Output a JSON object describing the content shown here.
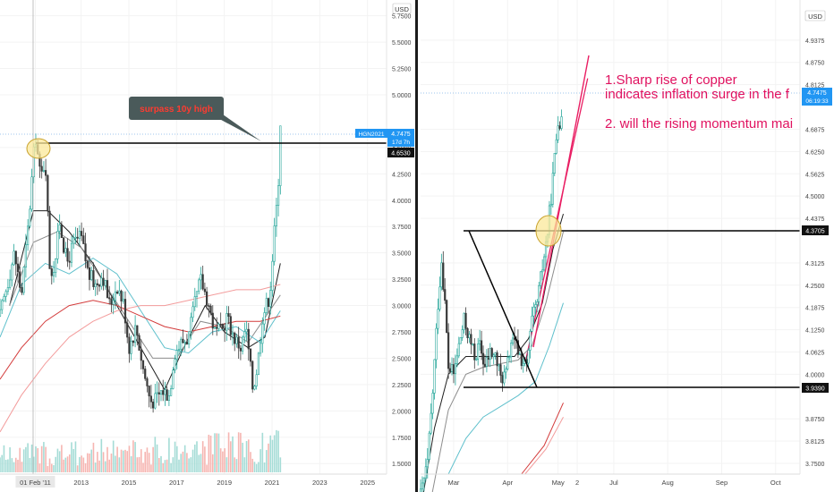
{
  "colors": {
    "up": "#26a69a",
    "down": "#3b3b3b",
    "vol_up": "#a5dcd6",
    "vol_down": "#f6b5b1",
    "ma_black": "#1f1f1f",
    "ma_gray": "#8d8d8d",
    "ma_teal": "#5fc0cc",
    "ma_red_dark": "#d33b3b",
    "ma_red_light": "#f39c9c",
    "trend": "#e91e63",
    "annot_text": "#e0115f",
    "price_badge": "#2196f3",
    "callout_bg": "#4a5a5a",
    "callout_text": "#ff3b30",
    "ellipse_fill": "#fbe89a",
    "ellipse_stroke": "#c8a22d"
  },
  "chart_data": [
    {
      "type": "candlestick",
      "symbol": "HGN2021",
      "timeframe": "monthly",
      "currency": "USD",
      "ylim": [
        1.4,
        5.9
      ],
      "y_ticks": [
        "5.7500",
        "5.5000",
        "5.2500",
        "5.0000",
        "4.5000",
        "4.2500",
        "4.0000",
        "3.7500",
        "3.5000",
        "3.2500",
        "3.0000",
        "2.7500",
        "2.5000",
        "2.2500",
        "2.0000",
        "1.7500",
        "1.5000"
      ],
      "x_labels": [
        "01 Feb '11",
        "2013",
        "2015",
        "2017",
        "2019",
        "2021",
        "2023",
        "2025"
      ],
      "x_label_years": [
        2011.08,
        2013,
        2015,
        2017,
        2019,
        2021,
        2023,
        2025
      ],
      "xlim": [
        2009.6,
        2025.8
      ],
      "last_price": "4.7475",
      "countdown": "17d 7h",
      "horizontal_level": "4.6530",
      "callout": "surpass 10y high",
      "price_path": [
        [
          2009.6,
          2.9
        ],
        [
          2009.9,
          3.2
        ],
        [
          2010.2,
          3.5
        ],
        [
          2010.5,
          3.1
        ],
        [
          2010.8,
          3.8
        ],
        [
          2011.0,
          4.4
        ],
        [
          2011.1,
          4.6
        ],
        [
          2011.3,
          4.2
        ],
        [
          2011.5,
          4.4
        ],
        [
          2011.7,
          3.3
        ],
        [
          2011.9,
          3.4
        ],
        [
          2012.1,
          3.8
        ],
        [
          2012.4,
          3.4
        ],
        [
          2012.7,
          3.6
        ],
        [
          2013.0,
          3.65
        ],
        [
          2013.3,
          3.3
        ],
        [
          2013.6,
          3.2
        ],
        [
          2013.9,
          3.3
        ],
        [
          2014.2,
          3.0
        ],
        [
          2014.5,
          3.2
        ],
        [
          2014.8,
          3.0
        ],
        [
          2015.0,
          2.6
        ],
        [
          2015.3,
          2.8
        ],
        [
          2015.6,
          2.4
        ],
        [
          2015.9,
          2.1
        ],
        [
          2016.1,
          2.1
        ],
        [
          2016.4,
          2.2
        ],
        [
          2016.7,
          2.15
        ],
        [
          2016.9,
          2.55
        ],
        [
          2017.2,
          2.65
        ],
        [
          2017.5,
          2.7
        ],
        [
          2017.8,
          3.05
        ],
        [
          2018.0,
          3.25
        ],
        [
          2018.3,
          3.05
        ],
        [
          2018.6,
          2.75
        ],
        [
          2018.9,
          2.75
        ],
        [
          2019.1,
          2.9
        ],
        [
          2019.4,
          2.7
        ],
        [
          2019.7,
          2.6
        ],
        [
          2019.9,
          2.8
        ],
        [
          2020.2,
          2.2
        ],
        [
          2020.4,
          2.45
        ],
        [
          2020.6,
          2.9
        ],
        [
          2020.9,
          3.1
        ],
        [
          2021.1,
          3.7
        ],
        [
          2021.25,
          4.1
        ],
        [
          2021.35,
          4.75
        ]
      ],
      "volume_range": [
        0.05,
        0.4
      ],
      "moving_averages": [
        {
          "color_key": "ma_black",
          "points": [
            [
              2010.0,
              3.0
            ],
            [
              2011.0,
              3.9
            ],
            [
              2011.6,
              3.9
            ],
            [
              2012.5,
              3.7
            ],
            [
              2013.5,
              3.4
            ],
            [
              2014.5,
              3.0
            ],
            [
              2015.5,
              2.6
            ],
            [
              2016.5,
              2.2
            ],
            [
              2017.3,
              2.6
            ],
            [
              2018.2,
              3.0
            ],
            [
              2019.0,
              2.75
            ],
            [
              2020.0,
              2.6
            ],
            [
              2020.7,
              2.7
            ],
            [
              2021.35,
              3.4
            ]
          ]
        },
        {
          "color_key": "ma_gray",
          "points": [
            [
              2010.0,
              3.0
            ],
            [
              2011.0,
              3.6
            ],
            [
              2012.0,
              3.7
            ],
            [
              2013.0,
              3.55
            ],
            [
              2014.0,
              3.2
            ],
            [
              2015.0,
              2.85
            ],
            [
              2016.0,
              2.5
            ],
            [
              2017.0,
              2.5
            ],
            [
              2018.0,
              2.85
            ],
            [
              2019.0,
              2.8
            ],
            [
              2020.0,
              2.65
            ],
            [
              2021.35,
              3.1
            ]
          ]
        },
        {
          "color_key": "ma_teal",
          "points": [
            [
              2009.6,
              2.7
            ],
            [
              2010.5,
              3.2
            ],
            [
              2011.5,
              3.4
            ],
            [
              2012.5,
              3.3
            ],
            [
              2013.5,
              3.45
            ],
            [
              2014.5,
              3.3
            ],
            [
              2015.5,
              2.95
            ],
            [
              2016.5,
              2.6
            ],
            [
              2017.5,
              2.55
            ],
            [
              2018.5,
              2.75
            ],
            [
              2019.5,
              2.8
            ],
            [
              2020.5,
              2.65
            ],
            [
              2021.35,
              2.95
            ]
          ]
        },
        {
          "color_key": "ma_red_dark",
          "points": [
            [
              2009.6,
              2.3
            ],
            [
              2010.5,
              2.6
            ],
            [
              2011.5,
              2.85
            ],
            [
              2012.5,
              3.0
            ],
            [
              2013.5,
              3.05
            ],
            [
              2014.5,
              3.0
            ],
            [
              2015.5,
              2.9
            ],
            [
              2016.5,
              2.8
            ],
            [
              2017.5,
              2.75
            ],
            [
              2018.5,
              2.8
            ],
            [
              2019.5,
              2.85
            ],
            [
              2020.5,
              2.85
            ],
            [
              2021.35,
              2.9
            ]
          ]
        },
        {
          "color_key": "ma_red_light",
          "points": [
            [
              2009.6,
              1.8
            ],
            [
              2010.5,
              2.15
            ],
            [
              2011.5,
              2.45
            ],
            [
              2012.5,
              2.7
            ],
            [
              2013.5,
              2.85
            ],
            [
              2014.5,
              2.95
            ],
            [
              2015.5,
              3.0
            ],
            [
              2016.5,
              3.0
            ],
            [
              2017.5,
              3.05
            ],
            [
              2018.5,
              3.1
            ],
            [
              2019.5,
              3.15
            ],
            [
              2020.5,
              3.15
            ],
            [
              2021.35,
              3.2
            ]
          ]
        }
      ]
    },
    {
      "type": "candlestick",
      "timeframe": "daily",
      "currency": "USD",
      "ylim": [
        3.72,
        5.05
      ],
      "y_ticks": [
        "4.9375",
        "4.8750",
        "4.8125",
        "4.6875",
        "4.6250",
        "4.5625",
        "4.5000",
        "4.4375",
        "4.3125",
        "4.2500",
        "4.1875",
        "4.1250",
        "4.0625",
        "4.0000",
        "3.8750",
        "3.8125",
        "3.7500"
      ],
      "x_labels": [
        "Mar",
        "Apr",
        "May",
        "2",
        "Jul",
        "Aug",
        "Sep",
        "Oct"
      ],
      "x_label_days": [
        33,
        64,
        93,
        104,
        125,
        156,
        187,
        218
      ],
      "xlim": [
        14,
        232
      ],
      "last_price": "4.7475",
      "countdown": "06:19:33",
      "levels": [
        "4.3705",
        "3.9390"
      ],
      "triangle": [
        [
          26,
          4.37
        ],
        [
          56,
          4.1
        ],
        [
          70,
          3.939
        ]
      ],
      "annotations": [
        "1.Sharp rise of copper",
        "indicates inflation surge in the f",
        "2. will the rising momentum mai"
      ],
      "price_path": [
        [
          14,
          3.66
        ],
        [
          18,
          3.75
        ],
        [
          21,
          3.95
        ],
        [
          24,
          4.2
        ],
        [
          26,
          4.32
        ],
        [
          28,
          4.2
        ],
        [
          30,
          4.02
        ],
        [
          33,
          4.0
        ],
        [
          36,
          4.08
        ],
        [
          39,
          4.15
        ],
        [
          42,
          4.1
        ],
        [
          45,
          4.05
        ],
        [
          48,
          4.08
        ],
        [
          51,
          4.02
        ],
        [
          54,
          4.06
        ],
        [
          57,
          4.05
        ],
        [
          60,
          3.99
        ],
        [
          63,
          4.0
        ],
        [
          66,
          4.09
        ],
        [
          69,
          4.08
        ],
        [
          72,
          4.04
        ],
        [
          75,
          4.02
        ],
        [
          78,
          4.15
        ],
        [
          81,
          4.2
        ],
        [
          84,
          4.3
        ],
        [
          87,
          4.4
        ],
        [
          90,
          4.55
        ],
        [
          93,
          4.72
        ],
        [
          95,
          4.7
        ]
      ],
      "trendline": [
        [
          74,
          4.03
        ],
        [
          110,
          4.83
        ]
      ],
      "moving_averages": [
        {
          "color_key": "ma_black",
          "points": [
            [
              14,
              3.62
            ],
            [
              22,
              3.85
            ],
            [
              30,
              4.0
            ],
            [
              40,
              4.05
            ],
            [
              50,
              4.05
            ],
            [
              60,
              4.05
            ],
            [
              68,
              4.05
            ],
            [
              76,
              4.1
            ],
            [
              84,
              4.2
            ],
            [
              90,
              4.35
            ],
            [
              96,
              4.45
            ]
          ]
        },
        {
          "color_key": "ma_gray",
          "points": [
            [
              20,
              3.65
            ],
            [
              30,
              3.9
            ],
            [
              40,
              4.0
            ],
            [
              50,
              4.02
            ],
            [
              60,
              4.03
            ],
            [
              70,
              4.04
            ],
            [
              78,
              4.08
            ],
            [
              86,
              4.2
            ],
            [
              96,
              4.4
            ]
          ]
        },
        {
          "color_key": "ma_teal",
          "points": [
            [
              30,
              3.72
            ],
            [
              40,
              3.82
            ],
            [
              50,
              3.88
            ],
            [
              60,
              3.91
            ],
            [
              70,
              3.94
            ],
            [
              80,
              3.98
            ],
            [
              88,
              4.08
            ],
            [
              96,
              4.2
            ]
          ]
        },
        {
          "color_key": "ma_red_dark",
          "points": [
            [
              72,
              3.72
            ],
            [
              85,
              3.8
            ],
            [
              96,
              3.92
            ]
          ]
        },
        {
          "color_key": "ma_red_light",
          "points": [
            [
              74,
              3.72
            ],
            [
              86,
              3.79
            ],
            [
              96,
              3.88
            ]
          ]
        }
      ]
    }
  ]
}
